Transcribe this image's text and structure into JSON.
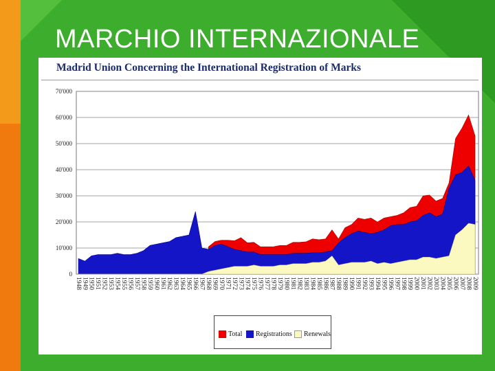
{
  "slide": {
    "title": "MARCHIO INTERNAZIONALE",
    "colors": {
      "background": "#3cad2c",
      "accent": "#f07a0e",
      "title_text": "#ffffff"
    }
  },
  "chart_data": {
    "type": "area",
    "stacked": false,
    "title": "Madrid Union Concerning the International Registration of Marks",
    "xlabel": "",
    "ylabel": "",
    "x": [
      1948,
      1949,
      1950,
      1951,
      1952,
      1953,
      1954,
      1955,
      1956,
      1957,
      1958,
      1959,
      1960,
      1961,
      1962,
      1963,
      1964,
      1965,
      1966,
      1967,
      1968,
      1969,
      1970,
      1971,
      1972,
      1973,
      1974,
      1975,
      1976,
      1977,
      1978,
      1979,
      1980,
      1981,
      1982,
      1983,
      1984,
      1985,
      1986,
      1987,
      1988,
      1989,
      1990,
      1991,
      1992,
      1993,
      1994,
      1995,
      1996,
      1997,
      1998,
      1999,
      2000,
      2001,
      2002,
      2003,
      2004,
      2005,
      2006,
      2007,
      2008,
      2009
    ],
    "x_tick_labels": [
      "1948",
      "1949",
      "1950",
      "1951",
      "1952",
      "1953",
      "1954",
      "1955",
      "1956",
      "1957",
      "1958",
      "1959",
      "1960",
      "1961",
      "1962",
      "1963",
      "1964",
      "1965",
      "1966",
      "1967",
      "1968",
      "1969",
      "1970",
      "1971",
      "1972",
      "1973",
      "1974",
      "1975",
      "1976",
      "1977",
      "1978",
      "1979",
      "1980",
      "1981",
      "1982",
      "1983",
      "1984",
      "1985",
      "1986",
      "1987",
      "1988",
      "1989",
      "1990",
      "1991",
      "1992",
      "1993",
      "1994",
      "1995",
      "1996",
      "1997",
      "1998",
      "1999",
      "2000",
      "2001",
      "2002",
      "2003",
      "2004",
      "2005",
      "2006",
      "2007",
      "2008",
      "2009"
    ],
    "y_tick_labels": [
      "0",
      "10'000",
      "20'000",
      "30'000",
      "40'000",
      "50'000",
      "60'000",
      "70'000"
    ],
    "ylim": [
      0,
      70000
    ],
    "grid": "horizontal",
    "legend_position": "bottom",
    "series": [
      {
        "name": "Total",
        "color": "#ee0000",
        "values": [
          null,
          null,
          null,
          null,
          null,
          null,
          null,
          null,
          null,
          null,
          null,
          null,
          null,
          null,
          null,
          null,
          null,
          null,
          null,
          null,
          10500,
          12500,
          13000,
          13000,
          12800,
          14000,
          12000,
          12200,
          10500,
          10500,
          10500,
          11000,
          11000,
          12200,
          12200,
          12400,
          13500,
          13200,
          13500,
          17000,
          13500,
          17800,
          19000,
          21500,
          21000,
          21500,
          20000,
          21500,
          22000,
          22500,
          23500,
          25500,
          26000,
          30000,
          30300,
          28000,
          29000,
          35000,
          52000,
          56000,
          61000,
          null
        ],
        "values_note_end": 53000
      },
      {
        "name": "Registrations",
        "color": "#1515c8",
        "values": [
          6000,
          5000,
          7000,
          7500,
          7500,
          7500,
          8000,
          7500,
          7500,
          8000,
          9000,
          11000,
          11500,
          12000,
          12500,
          14000,
          14500,
          15000,
          24000,
          10000,
          9500,
          11000,
          11500,
          10500,
          9500,
          9000,
          8500,
          8500,
          7500,
          7500,
          7500,
          7500,
          7500,
          8000,
          8000,
          8000,
          8200,
          8200,
          8500,
          9000,
          12000,
          14000,
          15500,
          16500,
          16000,
          15500,
          16000,
          17000,
          18500,
          19000,
          19000,
          20000,
          20500,
          22500,
          23500,
          22000,
          23000,
          33000,
          38000,
          39000,
          41500,
          36000
        ]
      },
      {
        "name": "Renewals",
        "color": "#fbf9bf",
        "values": [
          0,
          0,
          0,
          0,
          0,
          0,
          0,
          0,
          0,
          0,
          0,
          0,
          0,
          0,
          0,
          0,
          0,
          0,
          0,
          0,
          1000,
          1500,
          2000,
          2500,
          3000,
          3000,
          3000,
          3500,
          3000,
          3000,
          3000,
          3500,
          3500,
          4000,
          4000,
          4000,
          4500,
          4500,
          5000,
          7000,
          3500,
          4000,
          4500,
          4500,
          4500,
          5000,
          4000,
          4500,
          4000,
          4500,
          5000,
          5500,
          5500,
          6500,
          6500,
          6000,
          6500,
          7000,
          15000,
          17000,
          19500,
          19000
        ]
      }
    ]
  }
}
